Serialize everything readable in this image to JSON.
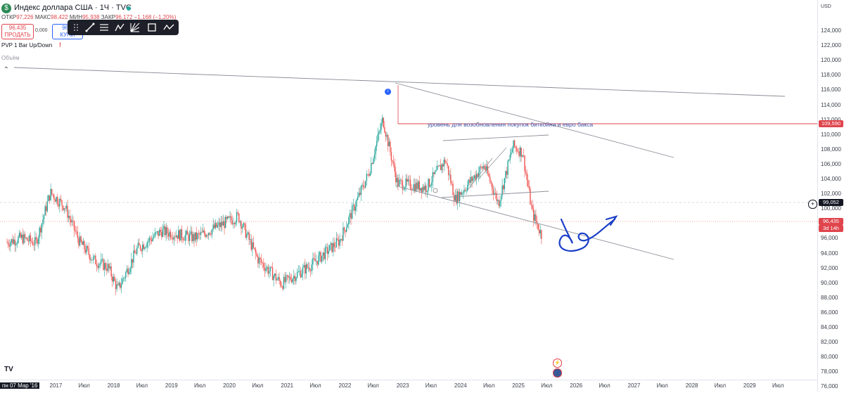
{
  "header": {
    "symbol_title": "Индекс доллара США · 1Ч · TVC",
    "ohlc": {
      "open_label": "ОТКР",
      "open": "97,226",
      "high_label": "МАКС",
      "high": "98,422",
      "low_label": "МИН",
      "low": "95,938",
      "close_label": "ЗАКР",
      "close": "96,172",
      "change": "−1,168 (−1,20%)"
    },
    "sell_price": "96,435",
    "sell_label": "ПРОДАТЬ",
    "spread": "0,000",
    "buy_price": "96,4",
    "buy_label": "КУПИ"
  },
  "indicators": {
    "pvp_label": "PVP 1 Bar Up/Down",
    "volume_label": "Объём"
  },
  "toolbar": {
    "icons": [
      "drag-handle-icon",
      "trend-line-icon",
      "fib-retracement-icon",
      "pattern-icon",
      "gann-icon",
      "rectangle-icon",
      "path-icon"
    ]
  },
  "price_axis": {
    "currency": "USD",
    "ticks": [
      "124,000",
      "122,000",
      "120,000",
      "118,000",
      "116,000",
      "114,000",
      "112,000",
      "110,000",
      "108,000",
      "106,000",
      "104,000",
      "102,000",
      "100,000",
      "98,000",
      "96,000",
      "94,000",
      "92,000",
      "90,000",
      "88,000",
      "86,000",
      "84,000",
      "82,000",
      "80,000",
      "78,000",
      "76,000"
    ],
    "tags": {
      "level": "109,590",
      "crosshair": "99,052",
      "last_price": "96,435",
      "countdown": "3d 14h"
    }
  },
  "time_axis": {
    "cursor_label": "пн 07 Мар '16",
    "ticks": [
      "2017",
      "Июл",
      "2018",
      "Июл",
      "2019",
      "Июл",
      "2020",
      "Июл",
      "2021",
      "Июл",
      "2022",
      "Июл",
      "2023",
      "Июл",
      "2024",
      "Июл",
      "2025",
      "Июл",
      "2026",
      "Июл",
      "2027",
      "Июл",
      "2028",
      "Июл",
      "2029",
      "Июл"
    ]
  },
  "annotation": {
    "text": "уровень для возобновления покупок биткойна и евро бакса"
  },
  "colors": {
    "up": "#26a69a",
    "down": "#ef5350",
    "level_line": "#e0454d",
    "annotation_text": "#3a52a8",
    "pen": "#1a3ec8",
    "trendline": "#8a8d96"
  },
  "chart_data": {
    "type": "candlestick",
    "y_unit": "index points",
    "ylim": [
      75,
      125
    ],
    "x_range": [
      "2016-03",
      "2029-12"
    ],
    "approx_monthly_closes": [
      {
        "x": "2016-03",
        "y": 95.5
      },
      {
        "x": "2016-06",
        "y": 96.1
      },
      {
        "x": "2016-09",
        "y": 95.4
      },
      {
        "x": "2016-12",
        "y": 102.2
      },
      {
        "x": "2017-03",
        "y": 100.3
      },
      {
        "x": "2017-06",
        "y": 95.6
      },
      {
        "x": "2017-09",
        "y": 93.1
      },
      {
        "x": "2017-12",
        "y": 92.1
      },
      {
        "x": "2018-02",
        "y": 89.1
      },
      {
        "x": "2018-06",
        "y": 94.6
      },
      {
        "x": "2018-11",
        "y": 97.0
      },
      {
        "x": "2019-06",
        "y": 96.1
      },
      {
        "x": "2019-10",
        "y": 97.4
      },
      {
        "x": "2020-03",
        "y": 99.0
      },
      {
        "x": "2020-07",
        "y": 93.3
      },
      {
        "x": "2020-12",
        "y": 89.9
      },
      {
        "x": "2021-06",
        "y": 92.4
      },
      {
        "x": "2021-12",
        "y": 95.7
      },
      {
        "x": "2022-06",
        "y": 104.7
      },
      {
        "x": "2022-09",
        "y": 112.1
      },
      {
        "x": "2022-12",
        "y": 103.5
      },
      {
        "x": "2023-06",
        "y": 102.9
      },
      {
        "x": "2023-10",
        "y": 106.6
      },
      {
        "x": "2023-12",
        "y": 101.3
      },
      {
        "x": "2024-06",
        "y": 105.9
      },
      {
        "x": "2024-09",
        "y": 100.8
      },
      {
        "x": "2024-12",
        "y": 108.5
      },
      {
        "x": "2025-02",
        "y": 107.6
      },
      {
        "x": "2025-04",
        "y": 99.5
      },
      {
        "x": "2025-06",
        "y": 96.4
      }
    ],
    "horizontal_level": 109.59,
    "last_price": 96.435
  }
}
